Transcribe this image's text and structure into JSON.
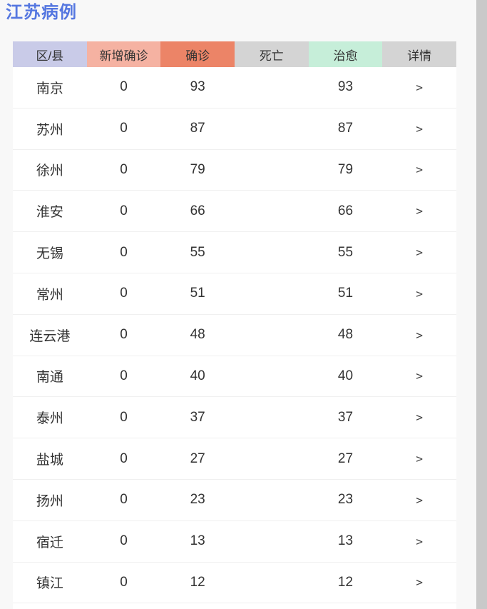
{
  "page": {
    "title": "江苏病例"
  },
  "theme": {
    "title_color": "#5577e0",
    "header_region_bg": "#c9cbe8",
    "header_new_confirmed_bg": "#f5b2a2",
    "header_confirmed_bg": "#ec8467",
    "header_deaths_bg": "#d4d4d4",
    "header_cured_bg": "#c6eed9",
    "header_detail_bg": "#d4d4d4",
    "row_divider_color": "#f0f0f0",
    "text_color": "#333333",
    "table_bg": "#ffffff",
    "page_bg": "#f8f8f8",
    "scrollbar_color": "#c9c9c9"
  },
  "table": {
    "headers": [
      {
        "key": "region",
        "label": "区/县"
      },
      {
        "key": "new_confirmed",
        "label": "新增确诊"
      },
      {
        "key": "confirmed",
        "label": "确诊"
      },
      {
        "key": "deaths",
        "label": "死亡"
      },
      {
        "key": "cured",
        "label": "治愈"
      },
      {
        "key": "detail",
        "label": "详情"
      }
    ],
    "rows": [
      {
        "region": "南京",
        "new_confirmed": "0",
        "confirmed": "93",
        "deaths": "",
        "cured": "93",
        "detail": ">"
      },
      {
        "region": "苏州",
        "new_confirmed": "0",
        "confirmed": "87",
        "deaths": "",
        "cured": "87",
        "detail": ">"
      },
      {
        "region": "徐州",
        "new_confirmed": "0",
        "confirmed": "79",
        "deaths": "",
        "cured": "79",
        "detail": ">"
      },
      {
        "region": "淮安",
        "new_confirmed": "0",
        "confirmed": "66",
        "deaths": "",
        "cured": "66",
        "detail": ">"
      },
      {
        "region": "无锡",
        "new_confirmed": "0",
        "confirmed": "55",
        "deaths": "",
        "cured": "55",
        "detail": ">"
      },
      {
        "region": "常州",
        "new_confirmed": "0",
        "confirmed": "51",
        "deaths": "",
        "cured": "51",
        "detail": ">"
      },
      {
        "region": "连云港",
        "new_confirmed": "0",
        "confirmed": "48",
        "deaths": "",
        "cured": "48",
        "detail": ">"
      },
      {
        "region": "南通",
        "new_confirmed": "0",
        "confirmed": "40",
        "deaths": "",
        "cured": "40",
        "detail": ">"
      },
      {
        "region": "泰州",
        "new_confirmed": "0",
        "confirmed": "37",
        "deaths": "",
        "cured": "37",
        "detail": ">"
      },
      {
        "region": "盐城",
        "new_confirmed": "0",
        "confirmed": "27",
        "deaths": "",
        "cured": "27",
        "detail": ">"
      },
      {
        "region": "扬州",
        "new_confirmed": "0",
        "confirmed": "23",
        "deaths": "",
        "cured": "23",
        "detail": ">"
      },
      {
        "region": "宿迁",
        "new_confirmed": "0",
        "confirmed": "13",
        "deaths": "",
        "cured": "13",
        "detail": ">"
      },
      {
        "region": "镇江",
        "new_confirmed": "0",
        "confirmed": "12",
        "deaths": "",
        "cured": "12",
        "detail": ">"
      }
    ]
  }
}
